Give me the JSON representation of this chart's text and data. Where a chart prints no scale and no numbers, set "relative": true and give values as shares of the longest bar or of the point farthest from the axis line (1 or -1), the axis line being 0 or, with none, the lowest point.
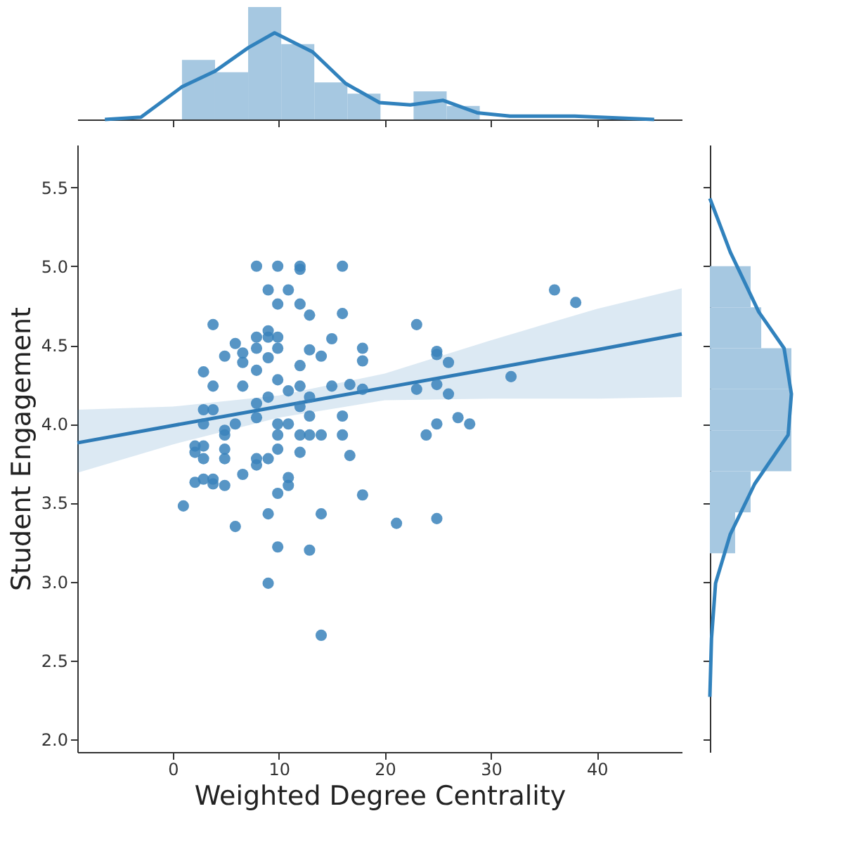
{
  "chart_data": [
    {
      "type": "histogram",
      "relative": true,
      "xlim": [
        -9,
        48
      ],
      "xticks": [
        0,
        10,
        20,
        30,
        40
      ],
      "tick_labels": false,
      "grid": false,
      "series": [
        {
          "color": "#a6c8e1",
          "bins": [
            0.87,
            3.99,
            7.11,
            10.23,
            13.35,
            16.47,
            19.59,
            22.71,
            25.83,
            28.95,
            32.07,
            35.19,
            38.31
          ],
          "values": [
            0.53,
            0.42,
            1,
            0.67,
            0.33,
            0.23,
            null,
            0.25,
            0.12,
            null,
            0,
            null
          ]
        },
        {
          "type": "line",
          "color": "#3182bd",
          "x": [
            -6.4,
            -3.0,
            0.87,
            3.99,
            7.15,
            9.6,
            13.2,
            16.3,
            19.5,
            22.4,
            25.5,
            28.7,
            31.8,
            37.9,
            45.4
          ],
          "values": [
            0,
            0.02,
            0.29,
            0.43,
            0.64,
            0.77,
            0.6,
            0.32,
            0.15,
            0.13,
            0.17,
            0.06,
            0.03,
            0.03,
            0
          ]
        }
      ]
    },
    {
      "type": "scatter",
      "xlabel": "Weighted Degree Centrality",
      "ylabel": "Student Engagement",
      "xlim": [
        -9,
        48
      ],
      "ylim": [
        1.92,
        5.77
      ],
      "xticks": [
        0,
        10,
        20,
        30,
        40
      ],
      "yticks": [
        {
          "value": 2.0,
          "label": "2.0"
        },
        {
          "value": 2.5,
          "label": "2.5"
        },
        {
          "value": 3.0,
          "label": "3.0"
        },
        {
          "value": 3.5,
          "label": "3.5"
        },
        {
          "value": 4.0,
          "label": "4.0"
        },
        {
          "value": 4.5,
          "label": "4.5"
        },
        {
          "value": 5.0,
          "label": "5.0"
        },
        {
          "value": 5.5,
          "label": "5.5"
        }
      ],
      "grid": false,
      "series": [
        {
          "color": "#3a82bb",
          "marker": "circle",
          "x": [
            7.9,
            9.9,
            12.0,
            12.0,
            16.0,
            9.0,
            10.9,
            9.9,
            12.0,
            12.9,
            16.0,
            3.8,
            15.0,
            5.9,
            7.9,
            9.0,
            9.0,
            9.9,
            9.9,
            7.9,
            9.0,
            6.6,
            6.6,
            4.9,
            12.9,
            14.0,
            12.0,
            2.9,
            7.9,
            3.8,
            6.6,
            9.9,
            12.0,
            15.0,
            16.7,
            10.9,
            9.0,
            12.9,
            7.9,
            2.9,
            3.8,
            2.9,
            5.9,
            7.9,
            9.9,
            10.9,
            12.0,
            12.9,
            16.0,
            4.9,
            4.9,
            9.9,
            12.0,
            12.9,
            14.0,
            16.0,
            2.1,
            2.1,
            2.9,
            2.9,
            4.9,
            4.9,
            7.9,
            7.9,
            9.0,
            9.9,
            12.0,
            16.7,
            6.6,
            2.1,
            2.9,
            3.8,
            3.8,
            4.9,
            10.9,
            10.9,
            9.9,
            1.0,
            9.0,
            14.0,
            5.9,
            9.9,
            12.9,
            9.0,
            14.0,
            17.9,
            17.9,
            17.9,
            17.9,
            21.1,
            23.0,
            24.9,
            24.9,
            26.0,
            23.0,
            24.9,
            26.0,
            24.9,
            23.9,
            26.9,
            28.0,
            31.9,
            36.0,
            38.0,
            24.9
          ],
          "values": [
            5.0,
            5.0,
            5.0,
            4.98,
            5.0,
            4.85,
            4.85,
            4.76,
            4.76,
            4.69,
            4.7,
            4.63,
            4.54,
            4.51,
            4.55,
            4.59,
            4.55,
            4.55,
            4.48,
            4.48,
            4.42,
            4.45,
            4.39,
            4.43,
            4.47,
            4.43,
            4.37,
            4.33,
            4.34,
            4.24,
            4.24,
            4.28,
            4.24,
            4.24,
            4.25,
            4.21,
            4.17,
            4.17,
            4.13,
            4.09,
            4.09,
            4.0,
            4.0,
            4.04,
            4.0,
            4.0,
            4.11,
            4.05,
            4.05,
            3.96,
            3.93,
            3.93,
            3.93,
            3.93,
            3.93,
            3.93,
            3.86,
            3.82,
            3.86,
            3.78,
            3.84,
            3.78,
            3.78,
            3.74,
            3.78,
            3.84,
            3.82,
            3.8,
            3.68,
            3.63,
            3.65,
            3.65,
            3.62,
            3.61,
            3.66,
            3.61,
            3.56,
            3.48,
            3.43,
            3.43,
            3.35,
            3.22,
            3.2,
            2.99,
            2.66,
            4.48,
            4.4,
            4.22,
            3.55,
            3.37,
            4.63,
            4.46,
            4.44,
            4.39,
            4.22,
            4.25,
            4.19,
            4.0,
            3.93,
            4.04,
            4.0,
            4.3,
            4.85,
            4.77,
            3.4
          ]
        },
        {
          "type": "line",
          "color": "#2f7bb6",
          "line_style": "solid",
          "x": [
            -9,
            0,
            10,
            20,
            30,
            40,
            48
          ],
          "values": [
            3.88,
            3.99,
            4.11,
            4.23,
            4.35,
            4.47,
            4.57
          ],
          "lower": [
            3.69,
            3.87,
            4.04,
            4.15,
            4.16,
            4.16,
            4.17
          ],
          "upper": [
            4.09,
            4.11,
            4.18,
            4.32,
            4.53,
            4.73,
            4.86
          ]
        }
      ]
    },
    {
      "type": "histogram",
      "relative": true,
      "orientation": "horizontal",
      "ylim": [
        1.92,
        5.77
      ],
      "yticks": [
        2.0,
        2.5,
        3.0,
        3.5,
        4.0,
        4.5,
        5.0,
        5.5
      ],
      "tick_labels": false,
      "grid": false,
      "series": [
        {
          "color": "#a6c8e1",
          "bins": [
            2.66,
            2.92,
            3.18,
            3.44,
            3.7,
            3.96,
            4.22,
            4.48,
            4.74,
            5.0
          ],
          "values": [
            0,
            0,
            0.31,
            0.5,
            1,
            1,
            1,
            0.63,
            0.5
          ]
        },
        {
          "type": "line",
          "color": "#3182bd",
          "x": [
            5.43,
            5.09,
            4.71,
            4.48,
            4.19,
            3.93,
            3.62,
            3.3,
            2.99,
            2.64,
            2.27
          ],
          "values": [
            0,
            0.25,
            0.6,
            0.91,
            1.0,
            0.96,
            0.55,
            0.25,
            0.07,
            0.02,
            0
          ]
        }
      ]
    }
  ]
}
